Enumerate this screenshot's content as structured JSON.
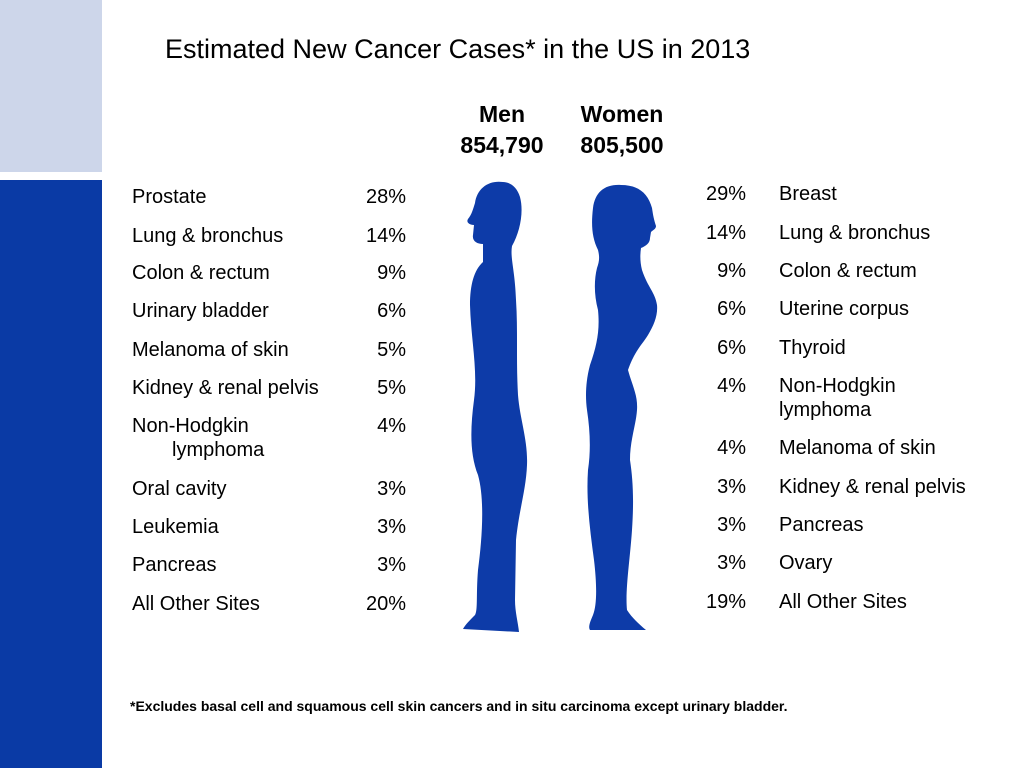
{
  "theme": {
    "accent": "#0a3aa5",
    "accent_light": "#cdd6ea",
    "figure_color": "#0d3ba8"
  },
  "chart_data": {
    "type": "table",
    "title": "Estimated New Cancer Cases* in the US in 2013",
    "series": [
      {
        "name": "Men",
        "total": "854,790",
        "rows": [
          {
            "site": "Prostate",
            "pct": "28%"
          },
          {
            "site": "Lung & bronchus",
            "pct": "14%"
          },
          {
            "site": "Colon & rectum",
            "pct": "9%"
          },
          {
            "site": "Urinary bladder",
            "pct": "6%"
          },
          {
            "site": "Melanoma of skin",
            "pct": "5%"
          },
          {
            "site": "Kidney & renal pelvis",
            "pct": "5%"
          },
          {
            "site": "Non-Hodgkin",
            "site_line2": "lymphoma",
            "pct": "4%"
          },
          {
            "site": "Oral cavity",
            "pct": "3%"
          },
          {
            "site": "Leukemia",
            "pct": "3%"
          },
          {
            "site": "Pancreas",
            "pct": "3%"
          },
          {
            "site": "All Other Sites",
            "pct": "20%"
          }
        ]
      },
      {
        "name": "Women",
        "total": "805,500",
        "rows": [
          {
            "site": "Breast",
            "pct": "29%"
          },
          {
            "site": "Lung & bronchus",
            "pct": "14%"
          },
          {
            "site": "Colon & rectum",
            "pct": "9%"
          },
          {
            "site": "Uterine corpus",
            "pct": "6%"
          },
          {
            "site": "Thyroid",
            "pct": "6%"
          },
          {
            "site": "Non-Hodgkin",
            "site_line2": "lymphoma",
            "pct": "4%"
          },
          {
            "site": "Melanoma of skin",
            "pct": "4%"
          },
          {
            "site": "Kidney & renal pelvis",
            "pct": "3%"
          },
          {
            "site": "Pancreas",
            "pct": "3%"
          },
          {
            "site": "Ovary",
            "pct": "3%"
          },
          {
            "site": "All Other Sites",
            "pct": "19%"
          }
        ]
      }
    ],
    "footnote": "*Excludes basal cell and squamous cell skin cancers and in situ carcinoma except urinary bladder."
  }
}
